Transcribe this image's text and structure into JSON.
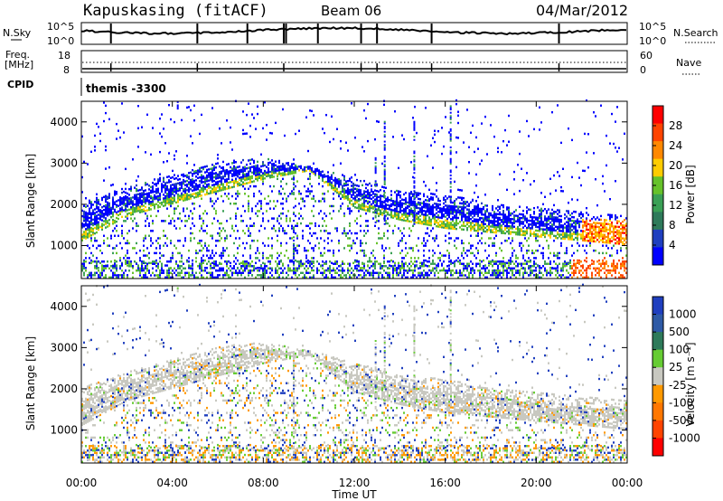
{
  "header": {
    "station": "Kapuskasing (fitACF)",
    "beam": "Beam 06",
    "date": "04/Mar/2012"
  },
  "noise_panel": {
    "left_label": "N.Sky",
    "right_label": "N.Search",
    "left_ticks": [
      "10^5",
      "10^0"
    ],
    "right_ticks": [
      "10^5",
      "10^0"
    ]
  },
  "freq_panel": {
    "left_label_1": "Freq.",
    "left_label_2": "[MHz]",
    "right_label": "Nave",
    "left_ticks": [
      "18",
      "8"
    ],
    "right_ticks": [
      "60",
      "0"
    ]
  },
  "cpid_panel": {
    "label": "CPID",
    "value": "themis -3300"
  },
  "colors": {
    "power_scale": [
      "#0000ff",
      "#1f3fbf",
      "#2e7a5a",
      "#3aa055",
      "#66c22a",
      "#ffcc00",
      "#ff8800",
      "#ff4400",
      "#ff0000"
    ],
    "velocity_scale": [
      "#1f3fbf",
      "#2e5aa6",
      "#2e7a5a",
      "#66cc33",
      "#c8c8c0",
      "#ff9900",
      "#ff7700",
      "#ff4400",
      "#ff0000"
    ],
    "ground_scatter": "#c8c8c0"
  },
  "chart_data": [
    {
      "type": "heatmap",
      "name": "power",
      "ylabel": "Slant Range [km]",
      "yticks": [
        "4000",
        "3000",
        "2000",
        "1000"
      ],
      "ylim": [
        200,
        4500
      ],
      "xlim": [
        "00:00",
        "24:00"
      ],
      "colorbar_label": "Power [dB]",
      "colorbar_ticks": [
        "28",
        "24",
        "20",
        "16",
        "12",
        "8",
        "4"
      ],
      "colorbar_range": [
        0,
        30
      ],
      "scatter_bands": [
        {
          "hour": 0,
          "lower_km": 1100,
          "upper_km": 2000
        },
        {
          "hour": 2,
          "lower_km": 1700,
          "upper_km": 2400
        },
        {
          "hour": 4,
          "lower_km": 2000,
          "upper_km": 2700
        },
        {
          "hour": 6,
          "lower_km": 2300,
          "upper_km": 3000
        },
        {
          "hour": 8,
          "lower_km": 2600,
          "upper_km": 3100
        },
        {
          "hour": 10,
          "lower_km": 2800,
          "upper_km": 2900
        },
        {
          "hour": 12,
          "lower_km": 1900,
          "upper_km": 2600
        },
        {
          "hour": 14,
          "lower_km": 1600,
          "upper_km": 2300
        },
        {
          "hour": 16,
          "lower_km": 1400,
          "upper_km": 2200
        },
        {
          "hour": 18,
          "lower_km": 1300,
          "upper_km": 2000
        },
        {
          "hour": 20,
          "lower_km": 1200,
          "upper_km": 1900
        },
        {
          "hour": 22,
          "lower_km": 1100,
          "upper_km": 1800
        },
        {
          "hour": 24,
          "lower_km": 1000,
          "upper_km": 1700
        }
      ]
    },
    {
      "type": "heatmap",
      "name": "velocity",
      "ylabel": "Slant Range [km]",
      "yticks": [
        "4000",
        "3000",
        "2000",
        "1000"
      ],
      "ylim": [
        200,
        4500
      ],
      "xlabel": "Time UT",
      "xticks": [
        "00:00",
        "04:00",
        "08:00",
        "12:00",
        "16:00",
        "20:00",
        "00:00"
      ],
      "colorbar_label": "Velocity [m s⁻¹]",
      "colorbar_ticks": [
        "1000",
        "500",
        "100",
        "25",
        "-25",
        "-100",
        "-500",
        "-1000"
      ],
      "colorbar_range": [
        -1000,
        1000
      ]
    }
  ]
}
